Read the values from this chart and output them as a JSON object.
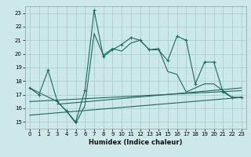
{
  "xlabel": "Humidex (Indice chaleur)",
  "ylabel": "",
  "xlim": [
    -0.5,
    23.5
  ],
  "ylim": [
    14.5,
    23.5
  ],
  "yticks": [
    15,
    16,
    17,
    18,
    19,
    20,
    21,
    22,
    23
  ],
  "xticks": [
    0,
    1,
    2,
    3,
    4,
    5,
    6,
    7,
    8,
    9,
    10,
    11,
    12,
    13,
    14,
    15,
    16,
    17,
    18,
    19,
    20,
    21,
    22,
    23
  ],
  "bg_color": "#cde8e8",
  "line_color": "#1a6b5a",
  "grid_color": "#a8d0d0",
  "series": {
    "line1_x": [
      0,
      1,
      2,
      3,
      4,
      5,
      6,
      7,
      8,
      9,
      10,
      11,
      12,
      13,
      14,
      15,
      16,
      17,
      18,
      19,
      20,
      21,
      22,
      23
    ],
    "line1_y": [
      17.5,
      17.0,
      18.8,
      16.5,
      15.8,
      15.0,
      17.3,
      23.2,
      19.8,
      20.3,
      20.7,
      21.2,
      21.0,
      20.3,
      20.3,
      19.5,
      21.3,
      21.0,
      17.8,
      19.4,
      19.4,
      17.2,
      16.8,
      16.8
    ],
    "line2_x": [
      0,
      3,
      4,
      5,
      6,
      7,
      8,
      9,
      10,
      11,
      12,
      13,
      14,
      15,
      16,
      17,
      18,
      19,
      20,
      21,
      22,
      23
    ],
    "line2_y": [
      17.5,
      16.5,
      15.8,
      14.9,
      16.2,
      21.5,
      19.9,
      20.4,
      20.2,
      20.8,
      21.0,
      20.3,
      20.4,
      18.7,
      18.5,
      17.2,
      17.5,
      17.8,
      17.8,
      17.3,
      16.8,
      16.8
    ],
    "line3_x": [
      0,
      23
    ],
    "line3_y": [
      15.5,
      16.8
    ],
    "line4_x": [
      0,
      23
    ],
    "line4_y": [
      16.5,
      17.3
    ],
    "line5_x": [
      3,
      23
    ],
    "line5_y": [
      16.3,
      17.5
    ]
  }
}
